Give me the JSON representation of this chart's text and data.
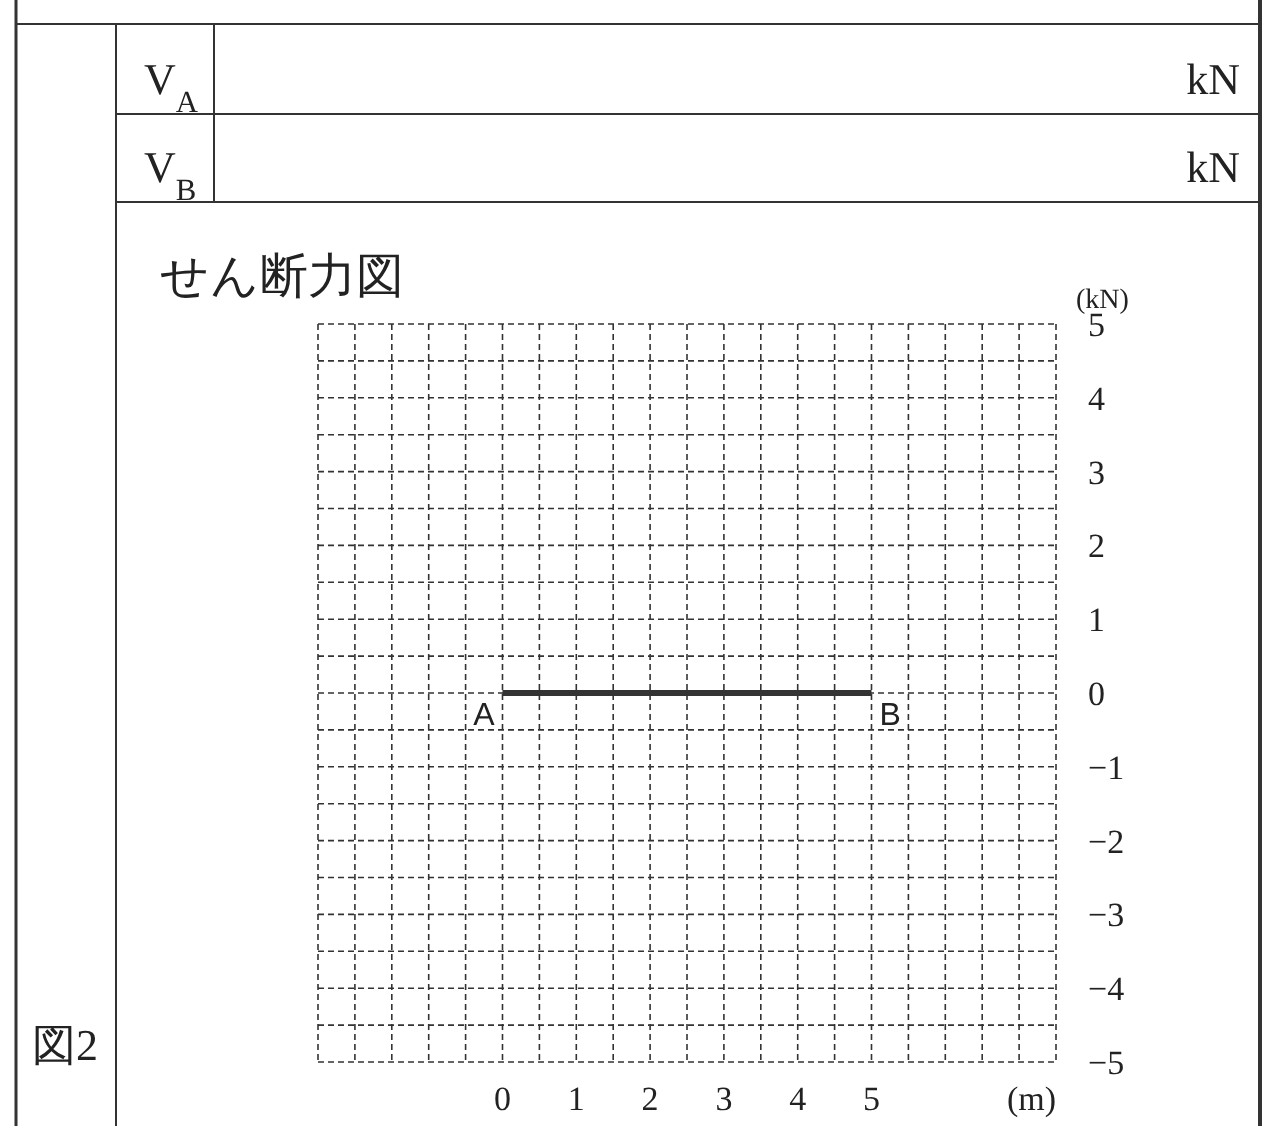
{
  "chart_data": {
    "type": "line",
    "title": "せん断力図",
    "xlabel": "(m)",
    "ylabel": "(kN)",
    "xlim": [
      -2.5,
      7.5
    ],
    "ylim": [
      -5,
      5
    ],
    "xticks": [
      0,
      1,
      2,
      3,
      4,
      5
    ],
    "yticks": [
      5,
      4,
      3,
      2,
      1,
      0,
      -1,
      -2,
      -3,
      -4,
      -5
    ],
    "grid": true,
    "marker": "none",
    "line_style": "solid",
    "series": [
      {
        "color": "#333333",
        "x": [
          0,
          5
        ],
        "values": [
          0,
          0
        ]
      }
    ],
    "annotations": [
      "V$_{A}$",
      "kN",
      "V$_{B}$",
      "kN",
      "図2",
      {
        "text": "A",
        "x": 0,
        "y": 0
      },
      {
        "text": "B",
        "x": 5,
        "y": 0
      }
    ]
  }
}
